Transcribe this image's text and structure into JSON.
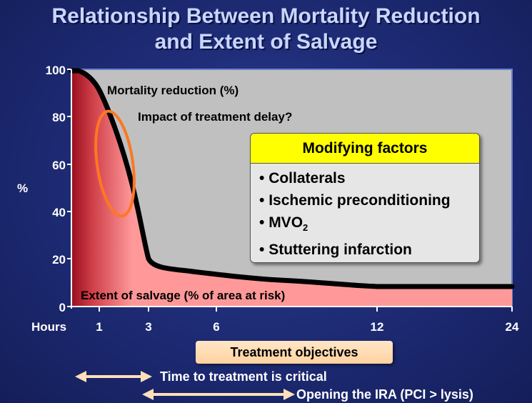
{
  "title": {
    "line1": "Relationship Between Mortality Reduction",
    "line2": "and Extent of Salvage"
  },
  "y_axis": {
    "label": "%",
    "ticks": [
      "0",
      "20",
      "40",
      "60",
      "80",
      "100"
    ]
  },
  "x_axis": {
    "label": "Hours",
    "ticks": [
      "1",
      "3",
      "6",
      "12",
      "24"
    ]
  },
  "annotations": {
    "mortality_reduction": "Mortality reduction (%)",
    "treatment_delay": "Impact of treatment delay?",
    "extent_of_salvage": "Extent of salvage (% of area at risk)"
  },
  "modifying_factors": {
    "header": "Modifying factors",
    "items": [
      "Collaterals",
      "Ischemic preconditioning",
      "MVO",
      "Stuttering infarction"
    ],
    "mvo_subscript": "2"
  },
  "treatment_objectives": "Treatment objectives",
  "timeline": {
    "critical": "Time to treatment is critical",
    "opening": "Opening the IRA (PCI > lysis)"
  },
  "colors": {
    "plot_background": "#c0c0c0",
    "salvage_area": "#ff9999",
    "early_salvage": "#a01020",
    "curve": "#000000",
    "ellipse": "#ff7722",
    "factors_header": "#ffff00"
  }
}
